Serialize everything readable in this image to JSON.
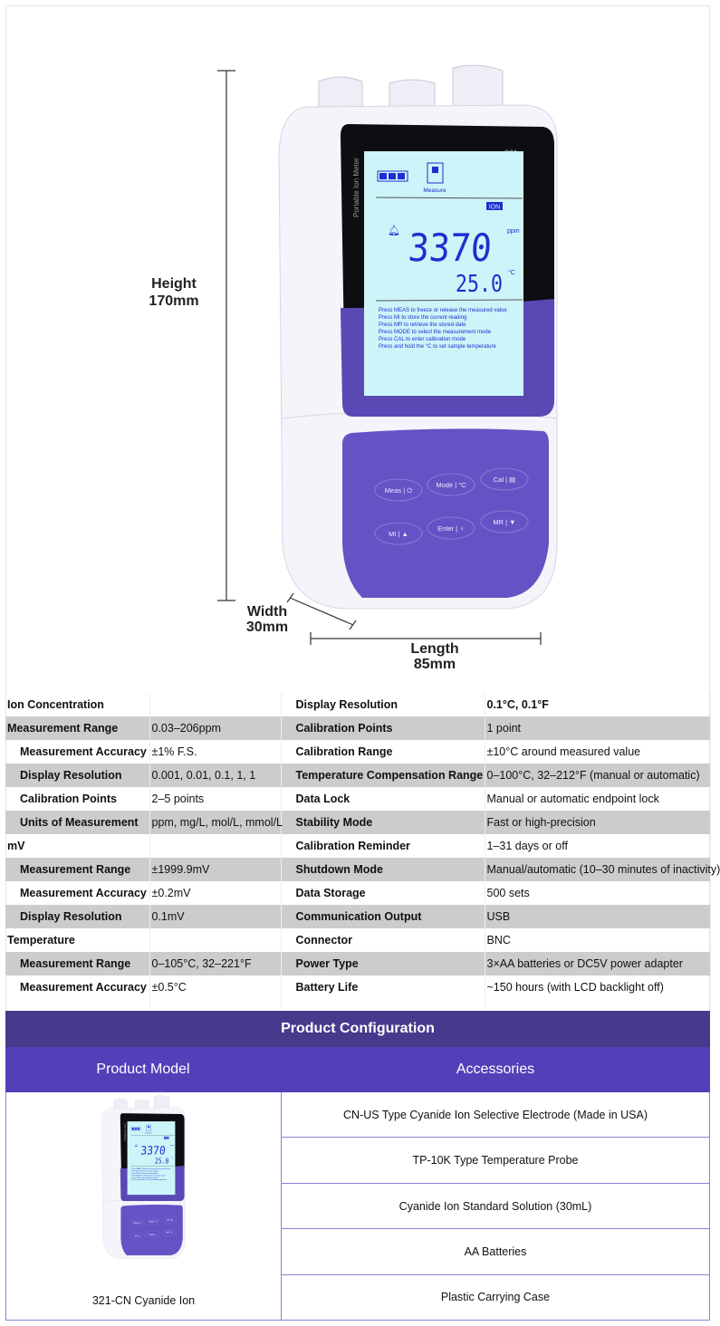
{
  "figure": {
    "height_label": "Height",
    "height_value": "170mm",
    "width_label": "Width",
    "width_value": "30mm",
    "length_label": "Length",
    "length_value": "85mm",
    "device": {
      "model_number": "321",
      "side_text": "Portable Ion Meter",
      "mode_label": "Measure",
      "mode_badge": "ION",
      "reading": "3370",
      "reading_unit": "ppm",
      "temperature": "25.0",
      "temperature_unit": "°C",
      "instructions": [
        "Press MEAS to freeze or release the measured value",
        "Press MI to store the current reading",
        "Press MR to retrieve the stored date",
        "Press MODE to select the measurement mode",
        "Press CAL to enter calibration mode",
        "Press and hold the °C to set sample temperature"
      ],
      "buttons": [
        "Meas | ⏻",
        "Mode | °C",
        "Cal | ▤",
        "MI | ▲",
        "Enter | ♀",
        "MR | ▼"
      ],
      "colors": {
        "keypad": "#6552c4",
        "lcd": "#cdf4f8",
        "lcd_text": "#1d2fd0"
      }
    }
  },
  "specs": {
    "left": [
      {
        "label": "Ion Concentration",
        "value": "",
        "level": "heading"
      },
      {
        "label": "Measurement Range",
        "value": "0.03–206ppm",
        "level": "heading"
      },
      {
        "label": "Measurement Accuracy",
        "value": "±1% F.S.",
        "level": "sub"
      },
      {
        "label": "Display Resolution",
        "value": "0.001, 0.01, 0.1, 1, 1",
        "level": "sub"
      },
      {
        "label": "Calibration Points",
        "value": "2–5 points",
        "level": "sub"
      },
      {
        "label": "Units of Measurement",
        "value": "ppm, mg/L, mol/L, mmol/L",
        "level": "sub"
      },
      {
        "label": "mV",
        "value": "",
        "level": "heading"
      },
      {
        "label": "Measurement Range",
        "value": "±1999.9mV",
        "level": "sub"
      },
      {
        "label": "Measurement Accuracy",
        "value": "±0.2mV",
        "level": "sub"
      },
      {
        "label": "Display Resolution",
        "value": "0.1mV",
        "level": "sub"
      },
      {
        "label": "Temperature",
        "value": "",
        "level": "heading"
      },
      {
        "label": "Measurement Range",
        "value": "0–105°C, 32–221°F",
        "level": "sub"
      },
      {
        "label": "Measurement Accuracy",
        "value": "±0.5°C",
        "level": "sub"
      }
    ],
    "right": [
      {
        "label": "Display Resolution",
        "value": "0.1°C, 0.1°F"
      },
      {
        "label": "Calibration Points",
        "value": "1 point"
      },
      {
        "label": "Calibration Range",
        "value": "±10°C around measured value"
      },
      {
        "label": "Temperature Compensation Range",
        "value": "0–100°C, 32–212°F (manual or automatic)"
      },
      {
        "label": "Data Lock",
        "value": "Manual or automatic endpoint lock"
      },
      {
        "label": "Stability Mode",
        "value": "Fast or high-precision"
      },
      {
        "label": "Calibration Reminder",
        "value": "1–31 days or off"
      },
      {
        "label": "Shutdown Mode",
        "value": "Manual/automatic (10–30 minutes of inactivity)"
      },
      {
        "label": "Data Storage",
        "value": "500 sets"
      },
      {
        "label": "Communication Output",
        "value": "USB"
      },
      {
        "label": "Connector",
        "value": "BNC"
      },
      {
        "label": "Power Type",
        "value": "3×AA batteries or DC5V power adapter"
      },
      {
        "label": "Battery Life",
        "value": "~150 hours (with LCD backlight off)"
      }
    ]
  },
  "configuration": {
    "title": "Product Configuration",
    "model_header": "Product Model",
    "accessories_header": "Accessories",
    "model_name": "321-CN Cyanide Ion",
    "accessories": [
      "CN-US Type Cyanide Ion Selective Electrode (Made in USA)",
      "TP-10K Type Temperature Probe",
      "Cyanide Ion Standard Solution (30mL)",
      "AA Batteries",
      "Plastic Carrying Case"
    ],
    "colors": {
      "title_bg": "#453a8c",
      "header_bg": "#5340b8",
      "border": "#8e80d8"
    }
  }
}
